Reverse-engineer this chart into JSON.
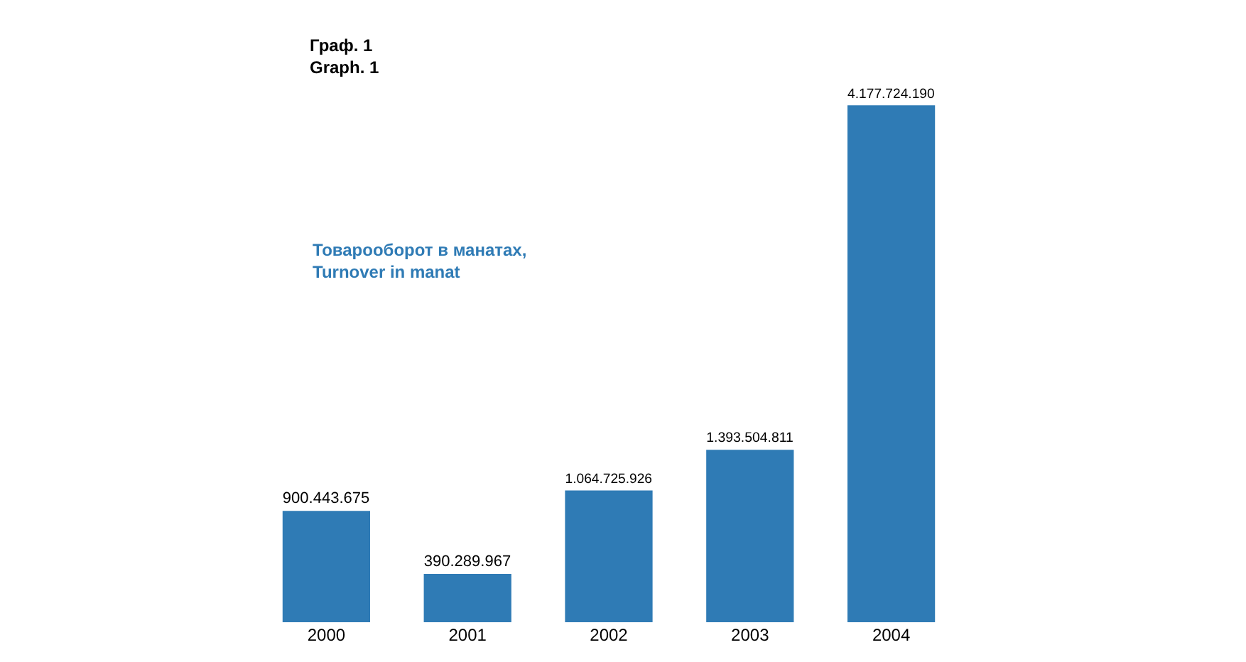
{
  "chart_data": {
    "type": "bar",
    "title": "Граф. 1\nGraph. 1",
    "subtitle": "Товарооборот в манатах,\nTurnover in manat",
    "categories": [
      "2000",
      "2001",
      "2002",
      "2003",
      "2004"
    ],
    "values": [
      900443675,
      390289967,
      1064725926,
      1393504811,
      4177724190
    ],
    "value_labels": [
      "900.443.675",
      "390.289.967",
      "1.064.725.926",
      "1.393.504.811",
      "4.177.724.190"
    ],
    "color": "#2f7bb5"
  }
}
